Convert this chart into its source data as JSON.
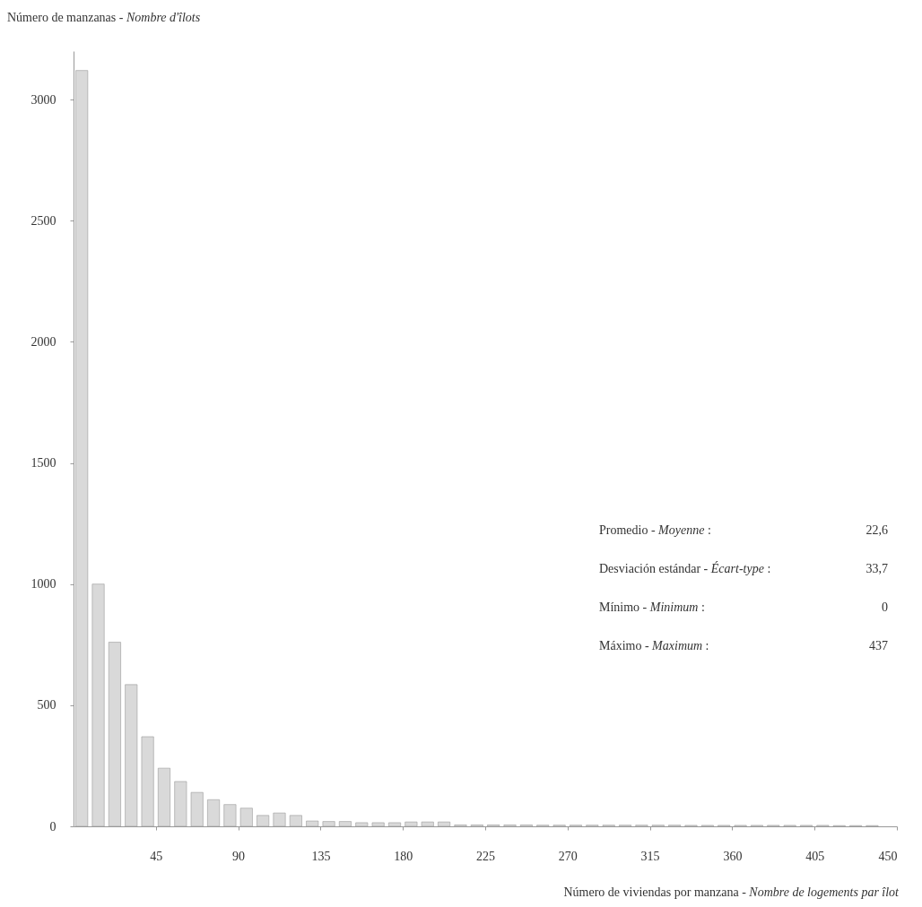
{
  "chart_data": {
    "type": "histogram",
    "ylabel": "Número de manzanas - Nombre d'îlots",
    "xlabel": "Número de viviendas por manzana - Nombre de logements par îlot",
    "bins": [
      0,
      9,
      18,
      27,
      36,
      45,
      54,
      63,
      72,
      81,
      90,
      99,
      108,
      117,
      126,
      135,
      144,
      153,
      162,
      171,
      180,
      189,
      198,
      207,
      216,
      225,
      234,
      243,
      252,
      261,
      270,
      279,
      288,
      297,
      306,
      315,
      324,
      333,
      342,
      351,
      360,
      369,
      378,
      387,
      396,
      405,
      414,
      423,
      432,
      441,
      450
    ],
    "values": [
      3120,
      1000,
      760,
      585,
      370,
      240,
      185,
      140,
      110,
      90,
      75,
      45,
      55,
      45,
      22,
      20,
      20,
      15,
      15,
      15,
      18,
      18,
      18,
      6,
      6,
      6,
      6,
      6,
      5,
      5,
      5,
      5,
      5,
      5,
      5,
      5,
      5,
      4,
      4,
      4,
      4,
      4,
      4,
      4,
      4,
      4,
      3,
      3,
      3,
      0
    ],
    "color": "#d9d9d9",
    "xlim": [
      0,
      450
    ],
    "xticks": [
      45,
      90,
      135,
      180,
      225,
      270,
      315,
      360,
      405,
      450
    ],
    "ylim": [
      0,
      3200
    ],
    "yticks": [
      0,
      500,
      1000,
      1500,
      2000,
      2500,
      3000
    ],
    "grid": false,
    "annotations": [
      "Promedio - Moyenne : 22,6",
      "Desviación estándar - Écart-type : 33,7",
      "Mínimo - Minimum : 0",
      "Máximo - Maximum : 437"
    ]
  }
}
